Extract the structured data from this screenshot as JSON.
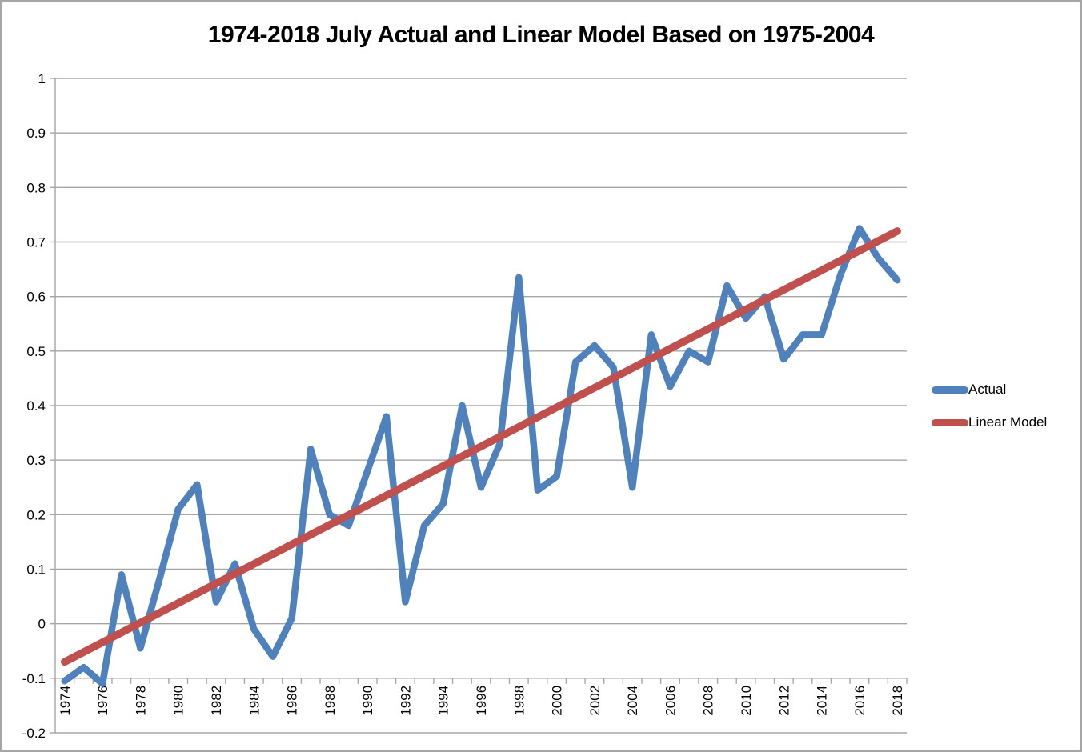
{
  "title": "1974-2018 July Actual and Linear Model Based on 1975-2004",
  "legend": {
    "items": [
      {
        "label": "Actual",
        "color": "#4F81BD"
      },
      {
        "label": "Linear Model",
        "color": "#C0504D"
      }
    ]
  },
  "chart_data": {
    "type": "line",
    "title": "1974-2018 July Actual and Linear Model Based on 1975-2004",
    "x": [
      1974,
      1975,
      1976,
      1977,
      1978,
      1979,
      1980,
      1981,
      1982,
      1983,
      1984,
      1985,
      1986,
      1987,
      1988,
      1989,
      1990,
      1991,
      1992,
      1993,
      1994,
      1995,
      1996,
      1997,
      1998,
      1999,
      2000,
      2001,
      2002,
      2003,
      2004,
      2005,
      2006,
      2007,
      2008,
      2009,
      2010,
      2011,
      2012,
      2013,
      2014,
      2015,
      2016,
      2017,
      2018
    ],
    "series": [
      {
        "name": "Actual",
        "color": "#4F81BD",
        "values": [
          -0.105,
          -0.08,
          -0.11,
          0.09,
          -0.045,
          0.08,
          0.21,
          0.255,
          0.04,
          0.11,
          -0.01,
          -0.06,
          0.01,
          0.32,
          0.2,
          0.18,
          0.28,
          0.38,
          0.04,
          0.18,
          0.22,
          0.4,
          0.25,
          0.33,
          0.635,
          0.245,
          0.27,
          0.48,
          0.51,
          0.47,
          0.25,
          0.53,
          0.435,
          0.5,
          0.48,
          0.62,
          0.56,
          0.6,
          0.485,
          0.53,
          0.53,
          0.64,
          0.725,
          0.67,
          0.63
        ]
      },
      {
        "name": "Linear Model",
        "color": "#C0504D",
        "x": [
          1974,
          2018
        ],
        "values": [
          -0.07,
          0.72
        ]
      }
    ],
    "x_tick_labels": [
      "1974",
      "1976",
      "1978",
      "1980",
      "1982",
      "1984",
      "1986",
      "1988",
      "1990",
      "1992",
      "1994",
      "1996",
      "1998",
      "2000",
      "2002",
      "2004",
      "2006",
      "2008",
      "2010",
      "2012",
      "2014",
      "2016",
      "2018"
    ],
    "y_tick_labels": [
      "1",
      "0.9",
      "0.8",
      "0.7",
      "0.6",
      "0.5",
      "0.4",
      "0.3",
      "0.2",
      "0.1",
      "0",
      "-0.1",
      "-0.2"
    ],
    "ylim": [
      -0.2,
      1
    ],
    "y_tick_step": 0.1,
    "x_axis_cross_y": -0.1,
    "grid": "horizontal-only",
    "legend_position": "right",
    "colors": {
      "grid": "#A6A6A6",
      "axis": "#A6A6A6",
      "text": "#000000",
      "background": "#FFFFFF",
      "border": "#A6A6A6"
    }
  }
}
